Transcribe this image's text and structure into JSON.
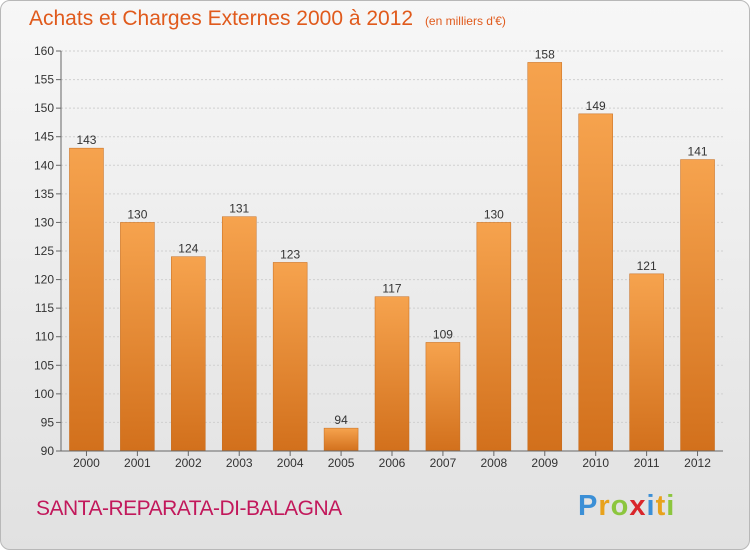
{
  "header": {
    "title": "Achats et Charges Externes 2000 à 2012",
    "unit": "(en milliers d'€)"
  },
  "footer": {
    "place": "SANTA-REPARATA-DI-BALAGNA",
    "logo_letters": [
      {
        "char": "P",
        "color": "#3b8fd6"
      },
      {
        "char": "r",
        "color": "#e8a21c"
      },
      {
        "char": "o",
        "color": "#8cc63e"
      },
      {
        "char": "x",
        "color": "#d9262b"
      },
      {
        "char": "i",
        "color": "#3b8fd6"
      },
      {
        "char": "t",
        "color": "#e8a21c"
      },
      {
        "char": "i",
        "color": "#8cc63e"
      }
    ]
  },
  "chart_data": {
    "type": "bar",
    "title": "Achats et Charges Externes 2000 à 2012",
    "categories": [
      "2000",
      "2001",
      "2002",
      "2003",
      "2004",
      "2005",
      "2006",
      "2007",
      "2008",
      "2009",
      "2010",
      "2011",
      "2012"
    ],
    "values": [
      143,
      130,
      124,
      131,
      123,
      94,
      117,
      109,
      130,
      158,
      149,
      121,
      141
    ],
    "ylim": [
      90,
      160
    ],
    "yticks": [
      90,
      95,
      100,
      105,
      110,
      115,
      120,
      125,
      130,
      135,
      140,
      145,
      150,
      155,
      160
    ],
    "grid": true,
    "colors": {
      "bar_light": "#f6a34e",
      "bar_dark": "#d2701c",
      "grid": "#d0d0d0",
      "axis": "#666666"
    }
  }
}
